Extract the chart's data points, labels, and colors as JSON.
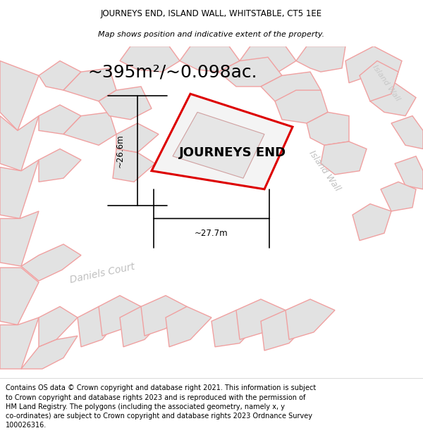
{
  "title_line1": "JOURNEYS END, ISLAND WALL, WHITSTABLE, CT5 1EE",
  "title_line2": "Map shows position and indicative extent of the property.",
  "area_text": "~395m²/~0.098ac.",
  "property_label": "JOURNEYS END",
  "road_label1": "Daniels Court",
  "road_label2": "Island Wall",
  "road_label3": "Island Wall",
  "dim_vertical": "~26.6m",
  "dim_horizontal": "~27.7m",
  "copyright_text": "Contains OS data © Crown copyright and database right 2021. This information is subject to Crown copyright and database rights 2023 and is reproduced with the permission of HM Land Registry. The polygons (including the associated geometry, namely x, y co-ordinates) are subject to Crown copyright and database rights 2023 Ordnance Survey 100026316.",
  "bg_color": "#ffffff",
  "map_bg": "#f4f4f4",
  "block_fill": "#e2e2e2",
  "block_stroke": "#f0a0a0",
  "property_fill": "#f4f4f4",
  "property_stroke": "#dd0000",
  "title_fontsize": 8.5,
  "area_fontsize": 18,
  "label_fontsize": 13,
  "road_label_fontsize": 10,
  "copyright_fontsize": 7.0
}
